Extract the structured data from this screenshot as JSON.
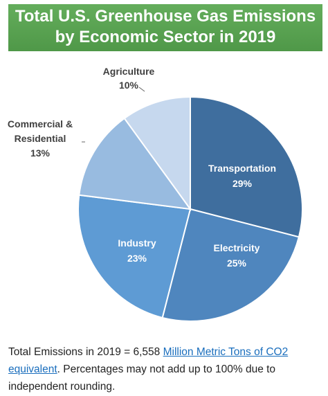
{
  "header": {
    "title_line1": "Total U.S. Greenhouse Gas Emissions",
    "title_line2": "by Economic Sector in 2019",
    "background": "#5aa352"
  },
  "chart_data": {
    "type": "pie",
    "title": "Total U.S. Greenhouse Gas Emissions by Economic Sector in 2019",
    "slices": [
      {
        "label": "Transportation",
        "value": 29,
        "value_label": "29%",
        "color": "#3f6e9e"
      },
      {
        "label": "Electricity",
        "value": 25,
        "value_label": "25%",
        "color": "#4f86be"
      },
      {
        "label": "Industry",
        "value": 23,
        "value_label": "23%",
        "color": "#5e9bd4"
      },
      {
        "label": "Commercial & Residential",
        "label_lines": [
          "Commercial &",
          "Residential"
        ],
        "value": 13,
        "value_label": "13%",
        "color": "#98bbe0"
      },
      {
        "label": "Agriculture",
        "value": 10,
        "value_label": "10%",
        "color": "#c6d8ee"
      }
    ]
  },
  "footnote": {
    "text_before": "Total Emissions in 2019 = 6,558 ",
    "link_text": "Million Metric Tons of CO2 equivalent",
    "text_after": ". Percentages may not add up to 100% due to independent rounding."
  }
}
